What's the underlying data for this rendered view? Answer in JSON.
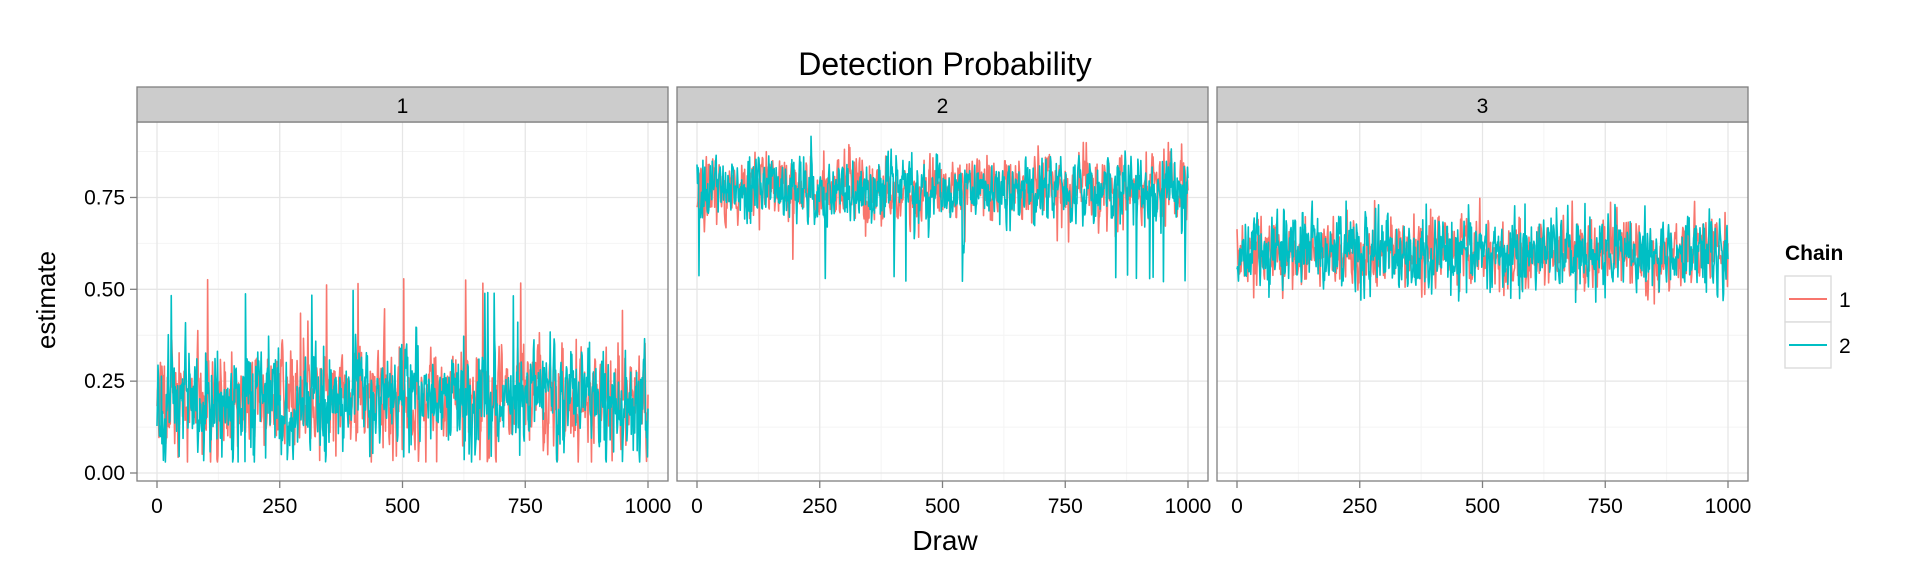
{
  "chart_data": {
    "type": "line",
    "title": "Detection Probability",
    "xlabel": "Draw",
    "ylabel": "estimate",
    "xlim": [
      0,
      1000
    ],
    "ylim": [
      0,
      0.95
    ],
    "x_ticks": [
      0,
      250,
      500,
      750,
      1000
    ],
    "y_ticks": [
      0.0,
      0.25,
      0.5,
      0.75
    ],
    "y_tick_labels": [
      "0.00",
      "0.25",
      "0.50",
      "0.75"
    ],
    "grid": true,
    "legend": {
      "title": "Chain",
      "position": "right",
      "entries": [
        {
          "label": "1",
          "color": "#F8766D"
        },
        {
          "label": "2",
          "color": "#00BFC4"
        }
      ]
    },
    "panels": [
      {
        "strip": "1",
        "series": [
          {
            "name": "1",
            "color": "#F8766D",
            "mean": 0.2,
            "sd": 0.065,
            "min": 0.03,
            "max": 0.53,
            "seed": 11
          },
          {
            "name": "2",
            "color": "#00BFC4",
            "mean": 0.2,
            "sd": 0.065,
            "min": 0.03,
            "max": 0.5,
            "seed": 23
          }
        ]
      },
      {
        "strip": "2",
        "series": [
          {
            "name": "1",
            "color": "#F8766D",
            "mean": 0.77,
            "sd": 0.042,
            "min": 0.57,
            "max": 0.9,
            "seed": 37
          },
          {
            "name": "2",
            "color": "#00BFC4",
            "mean": 0.77,
            "sd": 0.042,
            "min": 0.52,
            "max": 0.92,
            "seed": 41
          }
        ]
      },
      {
        "strip": "3",
        "series": [
          {
            "name": "1",
            "color": "#F8766D",
            "mean": 0.6,
            "sd": 0.045,
            "min": 0.45,
            "max": 0.75,
            "seed": 53
          },
          {
            "name": "2",
            "color": "#00BFC4",
            "mean": 0.6,
            "sd": 0.045,
            "min": 0.46,
            "max": 0.74,
            "seed": 67
          }
        ]
      }
    ],
    "draws_per_series": 1000
  }
}
